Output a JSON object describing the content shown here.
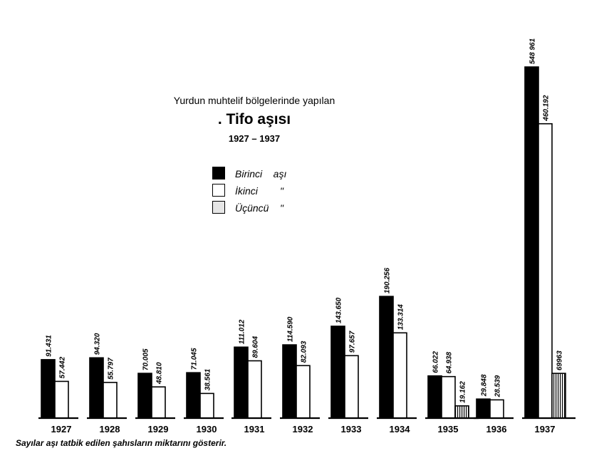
{
  "header": {
    "subtitle": "Yurdun muhtelif bölgelerinde yapılan",
    "title": ". Tifo aşısı",
    "years": "1927 – 1937"
  },
  "legend": [
    {
      "label": "Birinci    aşı",
      "fill": "black"
    },
    {
      "label": "İkinci        \"",
      "fill": "white"
    },
    {
      "label": "Üçüncü    \"",
      "fill": "hatched"
    }
  ],
  "footnote": "Sayılar aşı tatbik edilen şahısların miktarını gösterir.",
  "chart_data": {
    "type": "bar",
    "categories": [
      "1927",
      "1928",
      "1929",
      "1930",
      "1931",
      "1932",
      "1933",
      "1934",
      "1935",
      "1936",
      "1937"
    ],
    "series": [
      {
        "name": "Birinci aşı",
        "values": [
          91431,
          94320,
          70005,
          71045,
          111012,
          114590,
          143650,
          190256,
          66022,
          29848,
          548961
        ],
        "labels": [
          "91.431",
          "94.320",
          "70.005",
          "71.045",
          "111.012",
          "114.590",
          "143.650",
          "190.256",
          "66.022",
          "29.848",
          "548 961"
        ]
      },
      {
        "name": "İkinci",
        "values": [
          57442,
          55797,
          48810,
          38561,
          89604,
          82093,
          97657,
          133314,
          64938,
          28539,
          460192
        ],
        "labels": [
          "57.442",
          "55.797",
          "48.810",
          "38.561",
          "89.604",
          "82.093",
          "97.657",
          "133.314",
          "64.938",
          "28.539",
          "460.192"
        ]
      },
      {
        "name": "Üçüncü",
        "values": [
          null,
          null,
          null,
          null,
          null,
          null,
          null,
          null,
          19162,
          null,
          69963
        ],
        "labels": [
          "",
          "",
          "",
          "",
          "",
          "",
          "",
          "",
          "19.162",
          "",
          "69963"
        ]
      }
    ],
    "ylim": [
      0,
      548961
    ]
  }
}
